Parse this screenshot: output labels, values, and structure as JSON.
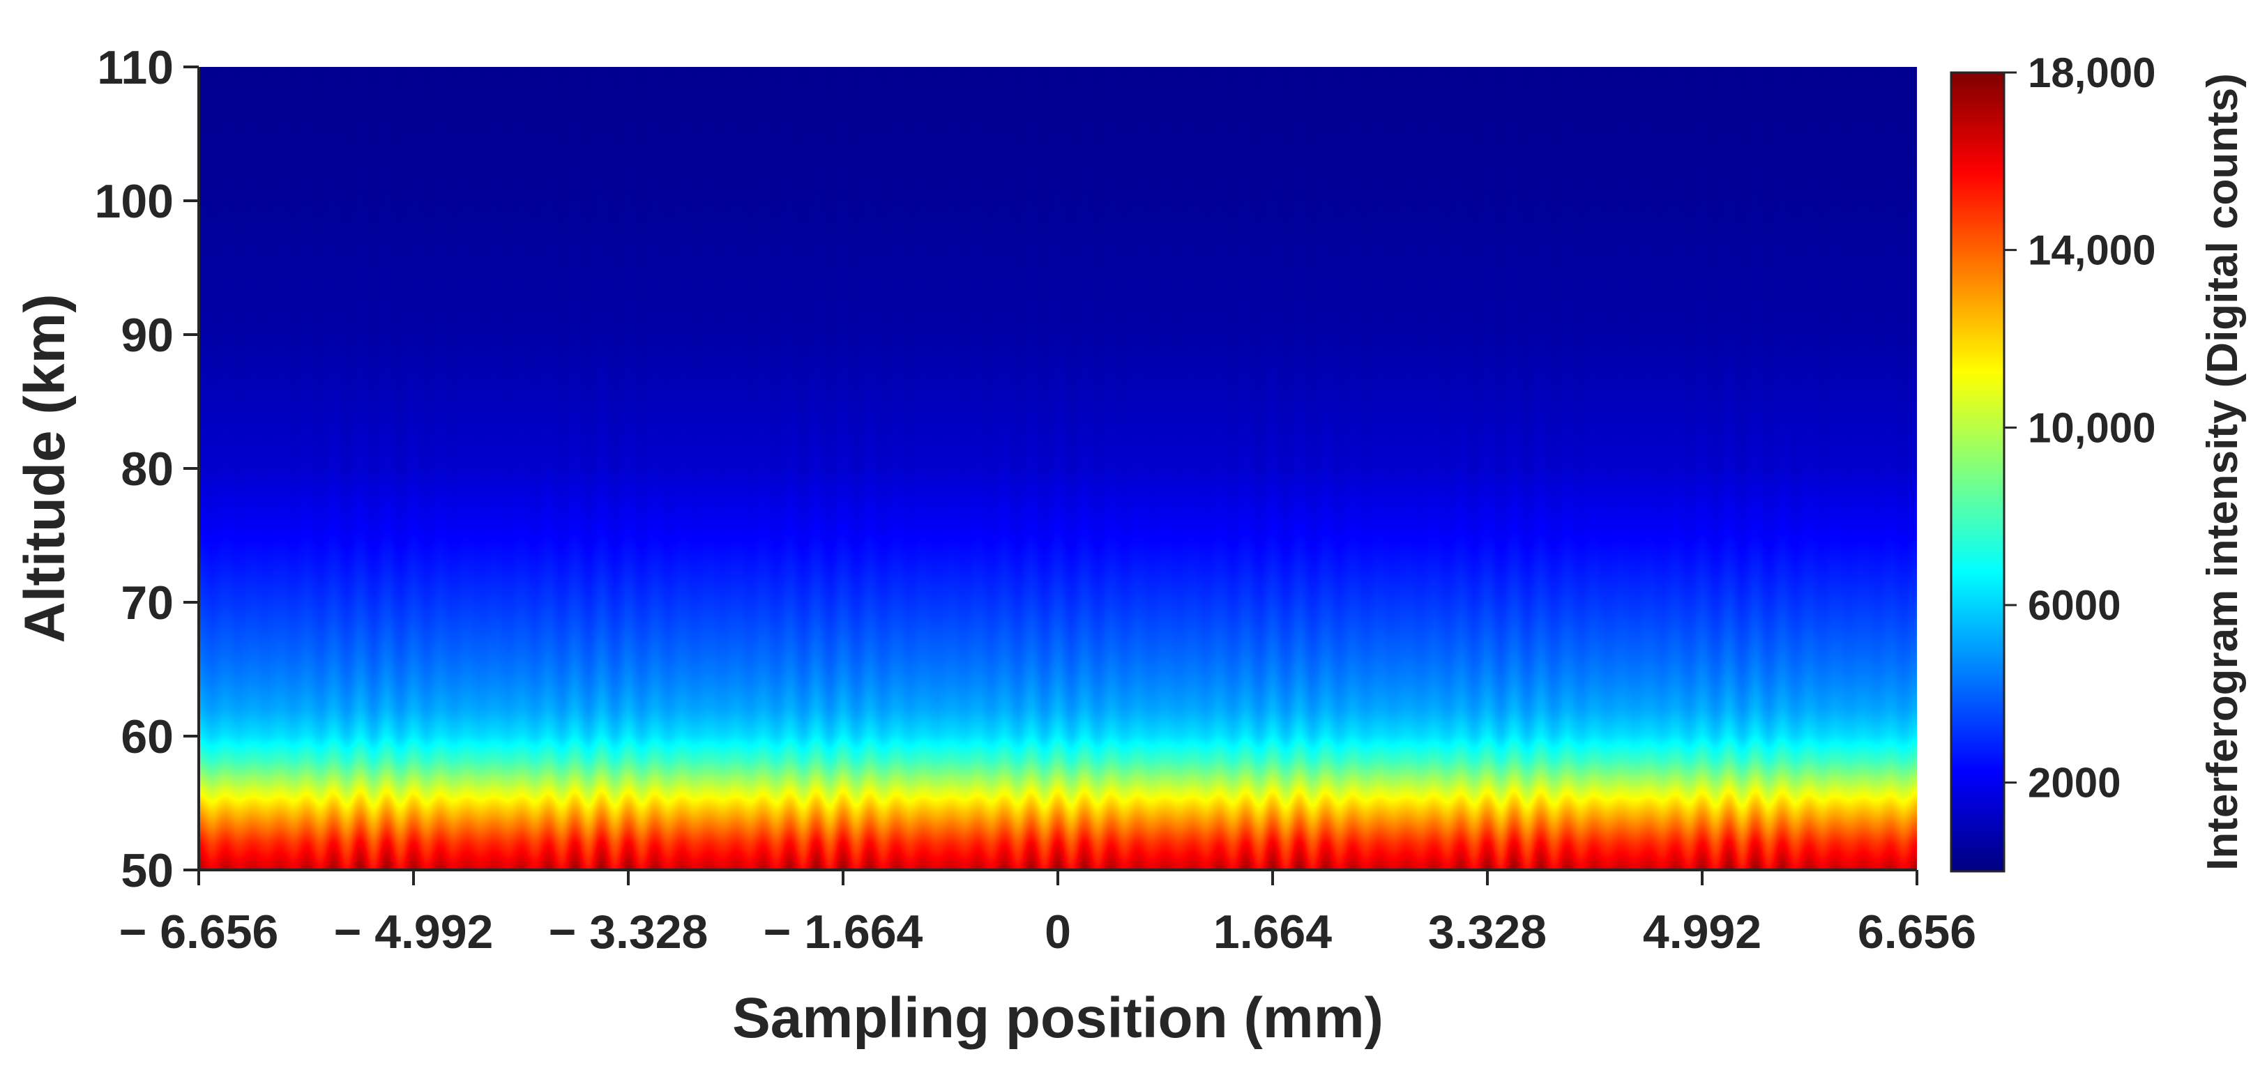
{
  "chart_data": {
    "type": "heatmap",
    "title": "",
    "xlabel": "Sampling position (mm)",
    "ylabel": "Altitude (km)",
    "xlim": [
      -6.656,
      6.656
    ],
    "ylim": [
      50,
      110
    ],
    "x_ticks": [
      -6.656,
      -4.992,
      -3.328,
      -1.664,
      0,
      1.664,
      3.328,
      4.992,
      6.656
    ],
    "x_tick_labels": [
      "− 6.656",
      "− 4.992",
      "− 3.328",
      "− 1.664",
      "0",
      "1.664",
      "3.328",
      "4.992",
      "6.656"
    ],
    "y_ticks": [
      50,
      60,
      70,
      80,
      90,
      100,
      110
    ],
    "y_tick_labels": [
      "50",
      "60",
      "70",
      "80",
      "90",
      "100",
      "110"
    ],
    "colorbar": {
      "label": "Interferogram intensity (Digital counts)",
      "range": [
        0,
        18000
      ],
      "ticks": [
        2000,
        6000,
        10000,
        14000,
        18000
      ],
      "tick_labels": [
        "2000",
        "6000",
        "10,000",
        "14,000",
        "18,000"
      ],
      "colormap": "jet",
      "colors": [
        "#00007f",
        "#0000ff",
        "#007fff",
        "#00ffff",
        "#7fff7f",
        "#ffff00",
        "#ff7f00",
        "#ff0000",
        "#7f0000"
      ]
    },
    "intensity_profile": {
      "altitude_km": [
        50,
        52,
        54,
        56,
        58,
        60,
        62,
        64,
        66,
        70,
        75,
        80,
        90,
        100,
        110
      ],
      "mean_counts": [
        16500,
        15000,
        12800,
        10500,
        8000,
        6200,
        5200,
        4600,
        4100,
        3200,
        2200,
        1400,
        700,
        450,
        300
      ]
    },
    "fringe_modulation": {
      "period_mm": 0.208,
      "relative_amplitude": 0.06
    },
    "grid": false
  }
}
